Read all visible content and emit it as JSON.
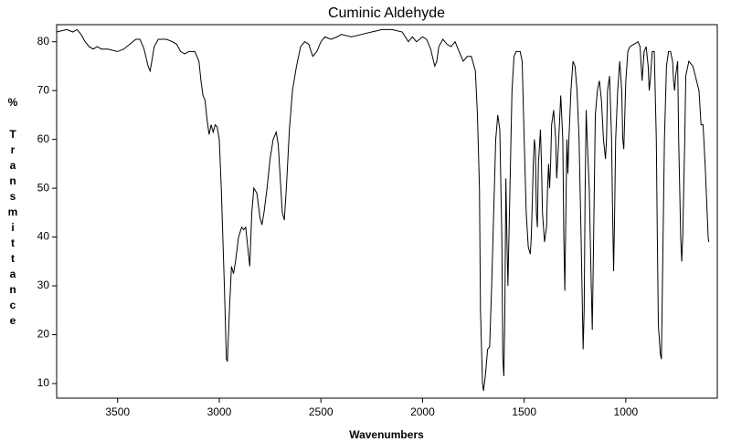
{
  "chart_data": {
    "type": "line",
    "title": "Cuminic Aldehyde",
    "xlabel": "Wavenumbers",
    "ylabel_unit": "%",
    "ylabel": "Transmittance",
    "xlim": [
      3800,
      550
    ],
    "ylim": [
      7,
      83.5
    ],
    "xticks": [
      3500,
      3000,
      2500,
      2000,
      1500,
      1000
    ],
    "yticks": [
      10,
      20,
      30,
      40,
      50,
      60,
      70,
      80
    ],
    "grid": false,
    "series": [
      {
        "color": "#000000",
        "x": [
          3800,
          3750,
          3720,
          3700,
          3680,
          3660,
          3640,
          3620,
          3600,
          3580,
          3550,
          3500,
          3470,
          3440,
          3410,
          3390,
          3370,
          3350,
          3340,
          3320,
          3300,
          3260,
          3230,
          3210,
          3190,
          3170,
          3150,
          3120,
          3100,
          3090,
          3080,
          3070,
          3060,
          3050,
          3040,
          3030,
          3020,
          3010,
          3000,
          2990,
          2975,
          2965,
          2960,
          2950,
          2940,
          2930,
          2920,
          2905,
          2890,
          2880,
          2870,
          2860,
          2850,
          2840,
          2830,
          2815,
          2800,
          2790,
          2780,
          2765,
          2750,
          2735,
          2720,
          2710,
          2700,
          2690,
          2680,
          2670,
          2655,
          2640,
          2620,
          2600,
          2580,
          2560,
          2540,
          2520,
          2500,
          2480,
          2450,
          2420,
          2400,
          2350,
          2300,
          2250,
          2200,
          2150,
          2100,
          2070,
          2050,
          2030,
          2000,
          1980,
          1960,
          1940,
          1930,
          1920,
          1900,
          1880,
          1860,
          1840,
          1820,
          1800,
          1780,
          1760,
          1740,
          1730,
          1720,
          1715,
          1705,
          1700,
          1690,
          1680,
          1670,
          1660,
          1650,
          1640,
          1630,
          1620,
          1610,
          1605,
          1600,
          1595,
          1590,
          1585,
          1580,
          1570,
          1560,
          1550,
          1540,
          1520,
          1510,
          1500,
          1490,
          1480,
          1470,
          1465,
          1455,
          1450,
          1445,
          1440,
          1435,
          1430,
          1420,
          1415,
          1410,
          1400,
          1390,
          1385,
          1380,
          1375,
          1370,
          1365,
          1355,
          1345,
          1340,
          1330,
          1320,
          1310,
          1305,
          1300,
          1295,
          1290,
          1285,
          1280,
          1270,
          1260,
          1250,
          1240,
          1230,
          1220,
          1210,
          1205,
          1200,
          1195,
          1190,
          1180,
          1170,
          1165,
          1160,
          1155,
          1150,
          1140,
          1130,
          1120,
          1110,
          1100,
          1095,
          1090,
          1080,
          1070,
          1065,
          1060,
          1055,
          1050,
          1040,
          1030,
          1020,
          1015,
          1010,
          1005,
          1000,
          990,
          980,
          960,
          940,
          930,
          920,
          910,
          900,
          890,
          885,
          880,
          870,
          860,
          850,
          845,
          840,
          830,
          825,
          820,
          810,
          800,
          790,
          780,
          770,
          765,
          760,
          755,
          745,
          740,
          730,
          725,
          720,
          710,
          705,
          700,
          690,
          670,
          640,
          630,
          620,
          610,
          600,
          595,
          592
        ],
        "values": [
          82,
          82.5,
          82,
          82.5,
          81.5,
          80,
          79,
          78.5,
          79,
          78.5,
          78.5,
          78,
          78.5,
          79.5,
          80.5,
          80.5,
          78.5,
          75,
          74,
          79,
          80.5,
          80.5,
          80,
          79.5,
          78,
          77.5,
          78,
          78,
          76,
          72,
          69,
          68,
          64,
          61,
          63,
          61.5,
          63,
          62.5,
          60,
          50,
          30,
          15,
          14.5,
          25,
          34,
          32.5,
          35,
          40,
          42,
          41.5,
          42,
          38,
          34,
          45,
          50,
          49,
          44,
          42.5,
          45,
          50,
          56,
          60,
          61.5,
          59,
          52,
          45,
          43.5,
          50,
          62,
          70,
          75,
          79,
          80,
          79.5,
          77,
          78,
          80,
          81,
          80.5,
          81,
          81.5,
          81,
          81.5,
          82,
          82.5,
          82.5,
          82,
          80,
          81,
          80,
          81,
          80.5,
          78.5,
          75,
          76,
          79,
          80.5,
          79.5,
          79,
          80,
          78,
          76,
          77,
          77,
          74,
          65,
          50,
          25,
          10,
          8.5,
          12,
          17,
          17.5,
          30,
          45,
          60,
          65,
          62,
          40,
          15,
          11.5,
          25,
          52,
          40,
          30,
          50,
          70,
          77,
          78,
          78,
          76,
          60,
          45,
          38,
          36.5,
          40,
          55,
          60,
          58,
          45,
          42,
          55,
          62,
          55,
          45,
          39,
          42,
          50,
          55,
          50,
          55,
          63,
          66,
          60,
          52,
          60,
          69,
          60,
          40,
          29,
          45,
          60,
          53,
          60,
          70,
          76,
          75,
          70,
          60,
          40,
          17,
          25,
          50,
          66,
          60,
          50,
          30,
          21,
          35,
          50,
          65,
          70,
          72,
          68,
          60,
          56,
          60,
          70,
          73,
          60,
          45,
          33,
          45,
          60,
          70,
          76,
          70,
          60,
          58,
          65,
          72,
          78,
          79,
          79.5,
          80,
          79,
          72,
          78,
          79,
          75,
          70,
          72,
          78,
          78,
          60,
          40,
          22,
          16,
          15,
          30,
          60,
          75,
          78,
          78,
          76,
          72,
          70,
          73,
          76,
          60,
          40,
          35,
          40,
          60,
          73,
          74,
          76,
          75,
          70,
          63,
          63,
          55,
          45,
          40,
          39
        ]
      }
    ]
  }
}
